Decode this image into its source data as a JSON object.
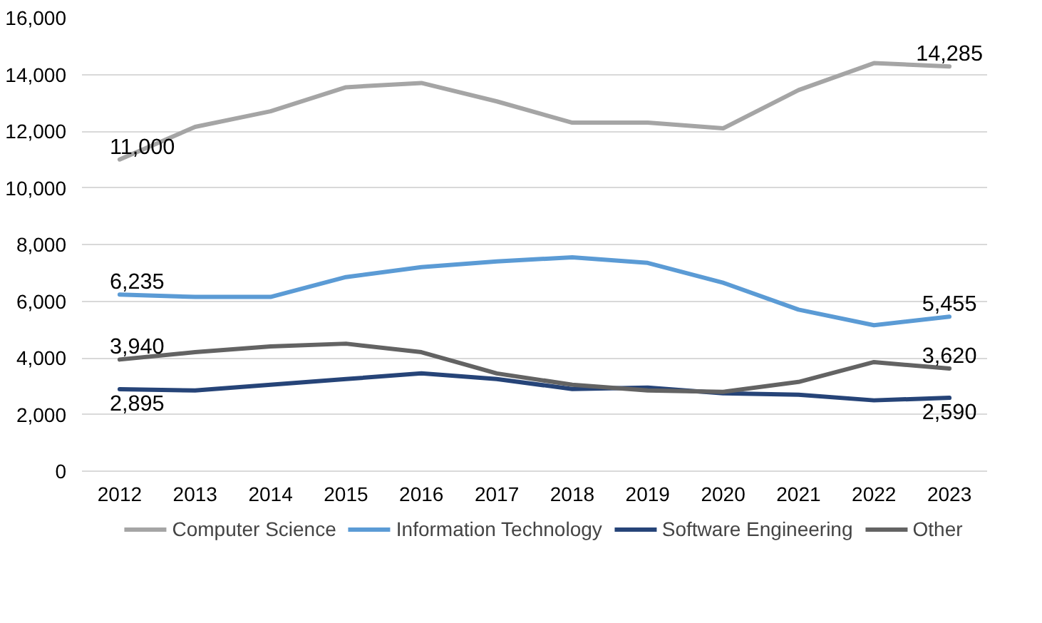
{
  "chart_data": {
    "type": "line",
    "categories": [
      "2012",
      "2013",
      "2014",
      "2015",
      "2016",
      "2017",
      "2018",
      "2019",
      "2020",
      "2021",
      "2022",
      "2023"
    ],
    "ylim": [
      0,
      16000
    ],
    "yticks": [
      {
        "value": 0,
        "label": "0"
      },
      {
        "value": 2000,
        "label": "2,000"
      },
      {
        "value": 4000,
        "label": "4,000"
      },
      {
        "value": 6000,
        "label": "6,000"
      },
      {
        "value": 8000,
        "label": "8,000"
      },
      {
        "value": 10000,
        "label": "10,000"
      },
      {
        "value": 12000,
        "label": "12,000"
      },
      {
        "value": 14000,
        "label": "14,000"
      },
      {
        "value": 16000,
        "label": "16,000"
      }
    ],
    "grid": "y",
    "legend": "bottom",
    "marker": "none",
    "line_style": "solid",
    "series": [
      {
        "name": "Computer Science",
        "color": "#a5a5a5",
        "values": [
          11000,
          12150,
          12700,
          13550,
          13700,
          13050,
          12300,
          12300,
          12100,
          13450,
          14400,
          14285
        ],
        "value_labels": [
          "11,000",
          null,
          null,
          null,
          null,
          null,
          null,
          null,
          null,
          null,
          null,
          "14,285"
        ]
      },
      {
        "name": "Information Technology",
        "color": "#5b9bd5",
        "values": [
          6235,
          6150,
          6150,
          6850,
          7200,
          7400,
          7550,
          7350,
          6650,
          5700,
          5150,
          5455
        ],
        "value_labels": [
          "6,235",
          null,
          null,
          null,
          null,
          null,
          null,
          null,
          null,
          null,
          null,
          "5,455"
        ]
      },
      {
        "name": "Software Engineering",
        "color": "#264478",
        "values": [
          2895,
          2850,
          3050,
          3250,
          3450,
          3250,
          2900,
          2950,
          2750,
          2700,
          2500,
          2590
        ],
        "value_labels": [
          "2,895",
          null,
          null,
          null,
          null,
          null,
          null,
          null,
          null,
          null,
          null,
          "2,590"
        ]
      },
      {
        "name": "Other",
        "color": "#636363",
        "values": [
          3940,
          4200,
          4400,
          4500,
          4200,
          3450,
          3050,
          2850,
          2800,
          3150,
          3850,
          3620
        ],
        "value_labels": [
          "3,940",
          null,
          null,
          null,
          null,
          null,
          null,
          null,
          null,
          null,
          null,
          "3,620"
        ]
      }
    ]
  }
}
